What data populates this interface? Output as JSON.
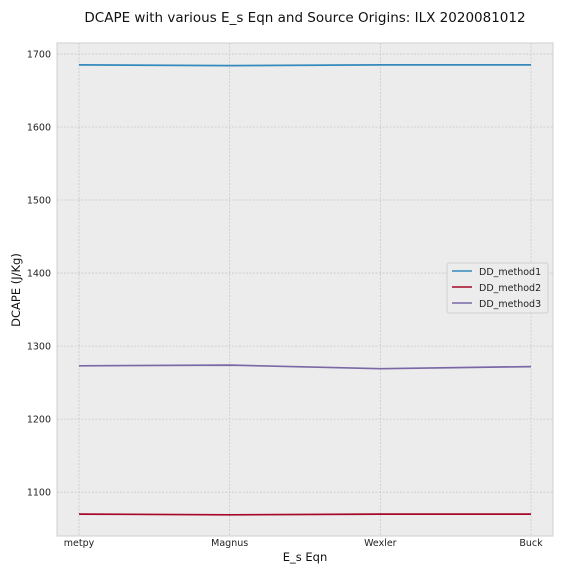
{
  "chart_data": {
    "type": "line",
    "title": "DCAPE with various E_s Eqn and Source Origins: ILX 2020081012",
    "xlabel": "E_s Eqn",
    "ylabel": "DCAPE (J/Kg)",
    "categories": [
      "metpy",
      "Magnus",
      "Wexler",
      "Buck"
    ],
    "ylim": [
      1040,
      1715
    ],
    "yticks": [
      1100,
      1200,
      1300,
      1400,
      1500,
      1600,
      1700
    ],
    "grid": true,
    "legend_position": "center-right",
    "background_color": "#ececec",
    "series": [
      {
        "name": "DD_method1",
        "color": "#348abd",
        "values": [
          1685,
          1684,
          1685,
          1685
        ]
      },
      {
        "name": "DD_method2",
        "color": "#a60628",
        "values": [
          1070,
          1069,
          1070,
          1070
        ]
      },
      {
        "name": "DD_method3",
        "color": "#7a68a6",
        "values": [
          1273,
          1274,
          1269,
          1272
        ]
      }
    ]
  }
}
